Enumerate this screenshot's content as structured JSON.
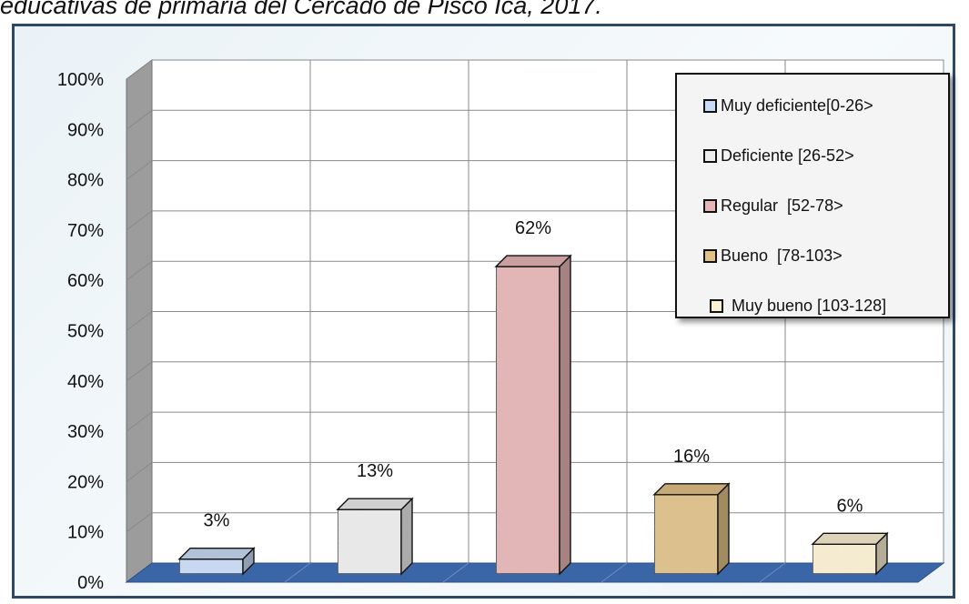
{
  "caption": "educativas de primaria del Cercado de Pisco Ica, 2017.",
  "chart_data": {
    "type": "bar",
    "categories": [
      "Muy deficiente[0-26>",
      "Deficiente [26-52>",
      "Regular  [52-78>",
      "Bueno  [78-103>",
      " Muy bueno [103-128]"
    ],
    "values": [
      3,
      13,
      62,
      16,
      6
    ],
    "value_labels": [
      "3%",
      "13%",
      "62%",
      "16%",
      "6%"
    ],
    "ylim": [
      0,
      100
    ],
    "y_ticks": [
      "0%",
      "10%",
      "20%",
      "30%",
      "40%",
      "50%",
      "60%",
      "70%",
      "80%",
      "90%",
      "100%"
    ],
    "grid": true,
    "legend_position": "top-right",
    "colors": [
      "#c9dcf7",
      "#ededed",
      "#e6b5b5",
      "#e0c187",
      "#fbf0d2"
    ],
    "floor_color": "#3a66a8"
  }
}
